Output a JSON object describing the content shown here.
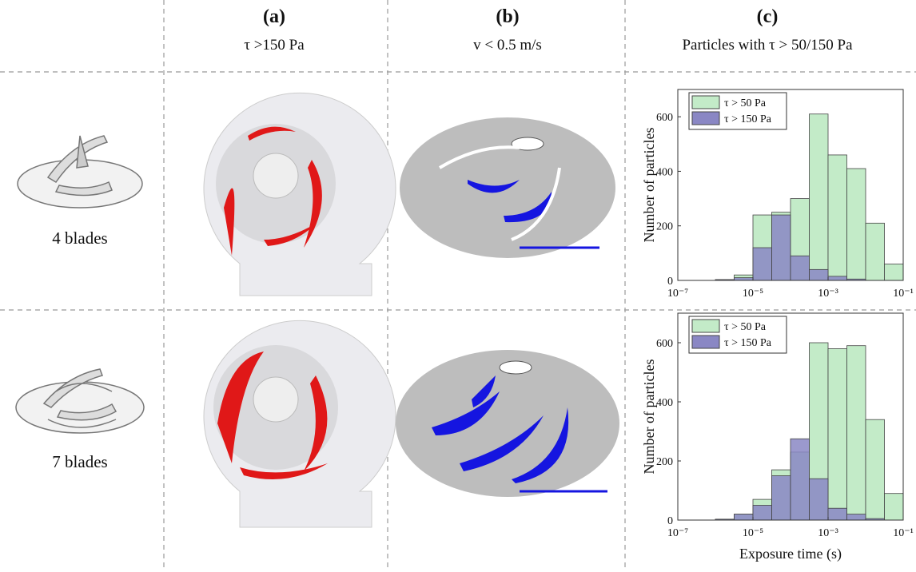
{
  "columns": [
    {
      "letter": "(a)",
      "subtitle": "τ >150 Pa"
    },
    {
      "letter": "(b)",
      "subtitle": "v < 0.5 m/s"
    },
    {
      "letter": "(c)",
      "subtitle": "Particles with τ  > 50/150 Pa"
    }
  ],
  "rows": [
    "4 blades",
    "7 blades"
  ],
  "chart_data": [
    {
      "type": "histogram",
      "y_label": "Number of particles",
      "x_log": true,
      "bins": [
        3.162e-07,
        1e-06,
        3.162e-06,
        1e-05,
        3.162e-05,
        0.0001,
        0.0003162,
        0.001,
        0.003162,
        0.01,
        0.03162,
        0.1
      ],
      "series": [
        {
          "name": "τ > 50 Pa",
          "color": "#c3ebc8",
          "values": [
            0,
            3,
            20,
            240,
            250,
            300,
            610,
            460,
            410,
            210,
            60
          ]
        },
        {
          "name": "τ > 150 Pa",
          "color": "#8a87c4",
          "values": [
            0,
            3,
            10,
            120,
            240,
            90,
            40,
            15,
            5,
            0,
            0
          ]
        }
      ],
      "xlim": [
        1e-07,
        0.1
      ],
      "xticks": [
        {
          "value": 1e-07,
          "label": "10⁻⁷"
        },
        {
          "value": 1e-05,
          "label": "10⁻⁵"
        },
        {
          "value": 0.001,
          "label": "10⁻³"
        },
        {
          "value": 0.1,
          "label": "10⁻¹"
        }
      ],
      "ylim": [
        0,
        700
      ],
      "yticks": [
        0,
        200,
        400,
        600
      ],
      "legend": "upper-left"
    },
    {
      "type": "histogram",
      "y_label": "Number of particles",
      "x_label": "Exposure time (s)",
      "x_log": true,
      "bins": [
        3.162e-07,
        1e-06,
        3.162e-06,
        1e-05,
        3.162e-05,
        0.0001,
        0.0003162,
        0.001,
        0.003162,
        0.01,
        0.03162,
        0.1
      ],
      "series": [
        {
          "name": "τ > 50 Pa",
          "color": "#c3ebc8",
          "values": [
            0,
            3,
            20,
            70,
            170,
            230,
            600,
            580,
            590,
            340,
            90
          ]
        },
        {
          "name": "τ > 150 Pa",
          "color": "#8a87c4",
          "values": [
            0,
            3,
            20,
            50,
            150,
            275,
            140,
            40,
            20,
            5,
            0
          ]
        }
      ],
      "xlim": [
        1e-07,
        0.1
      ],
      "xticks": [
        {
          "value": 1e-07,
          "label": "10⁻⁷"
        },
        {
          "value": 1e-05,
          "label": "10⁻⁵"
        },
        {
          "value": 0.001,
          "label": "10⁻³"
        },
        {
          "value": 0.1,
          "label": "10⁻¹"
        }
      ],
      "ylim": [
        0,
        700
      ],
      "yticks": [
        0,
        200,
        400,
        600
      ],
      "legend": "upper-left"
    }
  ]
}
